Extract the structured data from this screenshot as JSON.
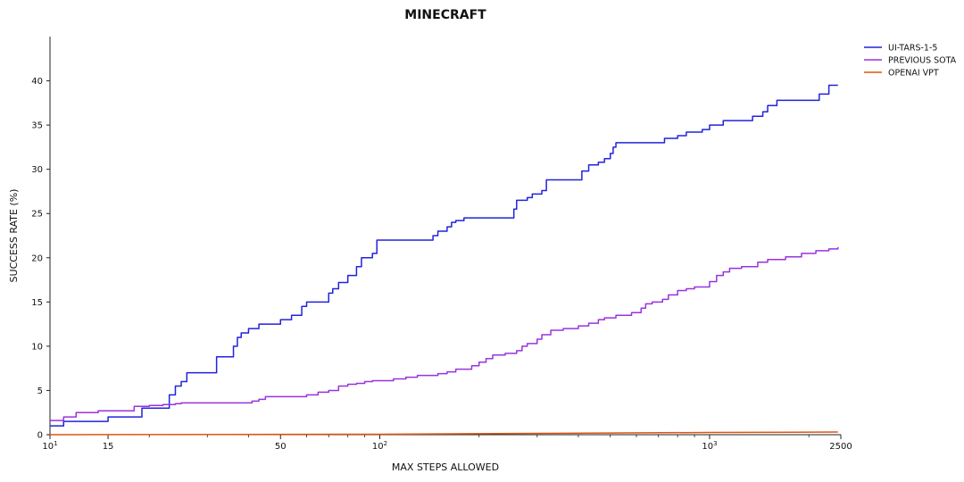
{
  "chart_data": {
    "type": "line",
    "title": "MINECRAFT",
    "xlabel": "MAX STEPS ALLOWED",
    "ylabel": "SUCCESS RATE (%)",
    "xscale": "log",
    "xlim": [
      10,
      2500
    ],
    "ylim": [
      0,
      45
    ],
    "x_ticks": [
      {
        "value": 10,
        "base": "10",
        "exp": "1"
      },
      {
        "value": 15,
        "label": "15"
      },
      {
        "value": 50,
        "label": "50"
      },
      {
        "value": 100,
        "base": "10",
        "exp": "2"
      },
      {
        "value": 1000,
        "base": "10",
        "exp": "3"
      },
      {
        "value": 2500,
        "label": "2500"
      }
    ],
    "y_ticks": [
      0,
      5,
      10,
      15,
      20,
      25,
      30,
      35,
      40
    ],
    "grid": false,
    "legend_position": "top-right",
    "series": [
      {
        "name": "UI-TARS-1-5",
        "color": "#2222dd",
        "style": "step",
        "points": [
          [
            10,
            1.0
          ],
          [
            11,
            1.5
          ],
          [
            14,
            1.5
          ],
          [
            15,
            2.0
          ],
          [
            18,
            2.0
          ],
          [
            19,
            3.0
          ],
          [
            20,
            3.0
          ],
          [
            23,
            4.5
          ],
          [
            24,
            5.5
          ],
          [
            25,
            6.0
          ],
          [
            26,
            7.0
          ],
          [
            28,
            7.0
          ],
          [
            32,
            8.8
          ],
          [
            34,
            8.8
          ],
          [
            36,
            10.0
          ],
          [
            37,
            11.0
          ],
          [
            38,
            11.5
          ],
          [
            40,
            12.0
          ],
          [
            43,
            12.5
          ],
          [
            49,
            12.5
          ],
          [
            50,
            13.0
          ],
          [
            54,
            13.5
          ],
          [
            58,
            14.5
          ],
          [
            60,
            15.0
          ],
          [
            68,
            15.0
          ],
          [
            70,
            16.0
          ],
          [
            72,
            16.5
          ],
          [
            75,
            17.2
          ],
          [
            80,
            18.0
          ],
          [
            85,
            19.0
          ],
          [
            88,
            20.0
          ],
          [
            95,
            20.5
          ],
          [
            98,
            22.0
          ],
          [
            140,
            22.0
          ],
          [
            145,
            22.5
          ],
          [
            150,
            23.0
          ],
          [
            160,
            23.5
          ],
          [
            165,
            24.0
          ],
          [
            170,
            24.2
          ],
          [
            180,
            24.5
          ],
          [
            250,
            24.5
          ],
          [
            255,
            25.5
          ],
          [
            260,
            26.5
          ],
          [
            280,
            26.8
          ],
          [
            290,
            27.2
          ],
          [
            310,
            27.6
          ],
          [
            320,
            28.8
          ],
          [
            400,
            28.8
          ],
          [
            410,
            29.8
          ],
          [
            430,
            30.5
          ],
          [
            460,
            30.8
          ],
          [
            480,
            31.2
          ],
          [
            500,
            31.8
          ],
          [
            510,
            32.5
          ],
          [
            520,
            33.0
          ],
          [
            720,
            33.0
          ],
          [
            730,
            33.5
          ],
          [
            800,
            33.8
          ],
          [
            850,
            34.2
          ],
          [
            950,
            34.5
          ],
          [
            1000,
            35.0
          ],
          [
            1100,
            35.5
          ],
          [
            1300,
            35.5
          ],
          [
            1350,
            36.0
          ],
          [
            1450,
            36.5
          ],
          [
            1500,
            37.2
          ],
          [
            1600,
            37.8
          ],
          [
            2100,
            37.8
          ],
          [
            2150,
            38.5
          ],
          [
            2300,
            39.5
          ],
          [
            2450,
            39.5
          ]
        ]
      },
      {
        "name": "PREVIOUS SOTA",
        "color": "#9933dd",
        "style": "step",
        "points": [
          [
            10,
            1.6
          ],
          [
            11,
            2.0
          ],
          [
            12,
            2.5
          ],
          [
            13,
            2.5
          ],
          [
            14,
            2.7
          ],
          [
            15,
            2.7
          ],
          [
            18,
            3.2
          ],
          [
            20,
            3.3
          ],
          [
            22,
            3.4
          ],
          [
            24,
            3.5
          ],
          [
            25,
            3.6
          ],
          [
            40,
            3.6
          ],
          [
            41,
            3.8
          ],
          [
            43,
            4.0
          ],
          [
            45,
            4.3
          ],
          [
            55,
            4.3
          ],
          [
            60,
            4.5
          ],
          [
            65,
            4.8
          ],
          [
            70,
            5.0
          ],
          [
            75,
            5.5
          ],
          [
            80,
            5.7
          ],
          [
            85,
            5.8
          ],
          [
            90,
            6.0
          ],
          [
            95,
            6.1
          ],
          [
            110,
            6.3
          ],
          [
            120,
            6.5
          ],
          [
            130,
            6.7
          ],
          [
            150,
            6.9
          ],
          [
            160,
            7.1
          ],
          [
            170,
            7.4
          ],
          [
            190,
            7.8
          ],
          [
            200,
            8.2
          ],
          [
            210,
            8.6
          ],
          [
            220,
            9.0
          ],
          [
            240,
            9.2
          ],
          [
            260,
            9.5
          ],
          [
            270,
            10.0
          ],
          [
            280,
            10.3
          ],
          [
            300,
            10.8
          ],
          [
            310,
            11.3
          ],
          [
            330,
            11.8
          ],
          [
            360,
            12.0
          ],
          [
            400,
            12.3
          ],
          [
            430,
            12.6
          ],
          [
            460,
            13.0
          ],
          [
            480,
            13.2
          ],
          [
            520,
            13.5
          ],
          [
            580,
            13.8
          ],
          [
            620,
            14.3
          ],
          [
            640,
            14.8
          ],
          [
            670,
            15.0
          ],
          [
            720,
            15.3
          ],
          [
            750,
            15.8
          ],
          [
            800,
            16.3
          ],
          [
            850,
            16.5
          ],
          [
            900,
            16.7
          ],
          [
            1000,
            17.3
          ],
          [
            1050,
            18.0
          ],
          [
            1100,
            18.4
          ],
          [
            1150,
            18.8
          ],
          [
            1250,
            19.0
          ],
          [
            1400,
            19.5
          ],
          [
            1500,
            19.8
          ],
          [
            1700,
            20.1
          ],
          [
            1900,
            20.5
          ],
          [
            2100,
            20.8
          ],
          [
            2300,
            21.0
          ],
          [
            2450,
            21.2
          ]
        ]
      },
      {
        "name": "OPENAI VPT",
        "color": "#dd5511",
        "style": "line",
        "points": [
          [
            10,
            0.0
          ],
          [
            100,
            0.05
          ],
          [
            300,
            0.15
          ],
          [
            1000,
            0.25
          ],
          [
            2450,
            0.3
          ]
        ]
      }
    ]
  }
}
